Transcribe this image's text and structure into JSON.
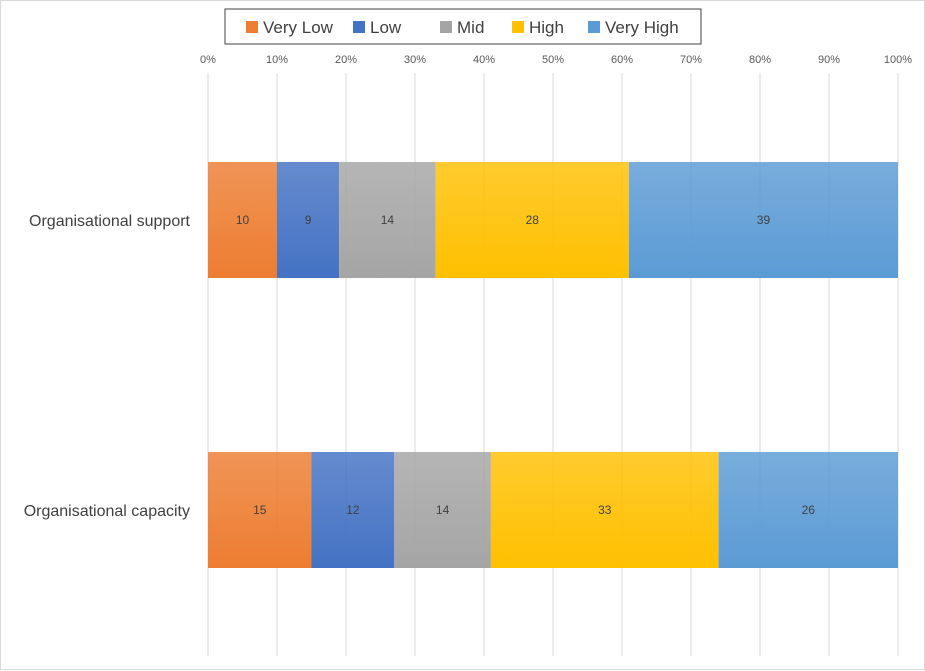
{
  "chart_data": {
    "type": "bar",
    "orientation": "horizontal",
    "stacking": "percent",
    "categories": [
      "Organisational support",
      "Organisational capacity"
    ],
    "series": [
      {
        "name": "Very Low",
        "color": "#ED7D31",
        "values": [
          10,
          15
        ]
      },
      {
        "name": "Low",
        "color": "#4472C4",
        "values": [
          9,
          12
        ]
      },
      {
        "name": "Mid",
        "color": "#A5A5A5",
        "values": [
          14,
          14
        ]
      },
      {
        "name": "High",
        "color": "#FFC000",
        "values": [
          28,
          33
        ]
      },
      {
        "name": "Very High",
        "color": "#5B9BD5",
        "values": [
          39,
          26
        ]
      }
    ],
    "x_ticks": [
      "0%",
      "10%",
      "20%",
      "30%",
      "40%",
      "50%",
      "60%",
      "70%",
      "80%",
      "90%",
      "100%"
    ],
    "xlim": [
      0,
      100
    ],
    "grid": true,
    "legend": "top",
    "title": "",
    "xlabel": "",
    "ylabel": ""
  }
}
